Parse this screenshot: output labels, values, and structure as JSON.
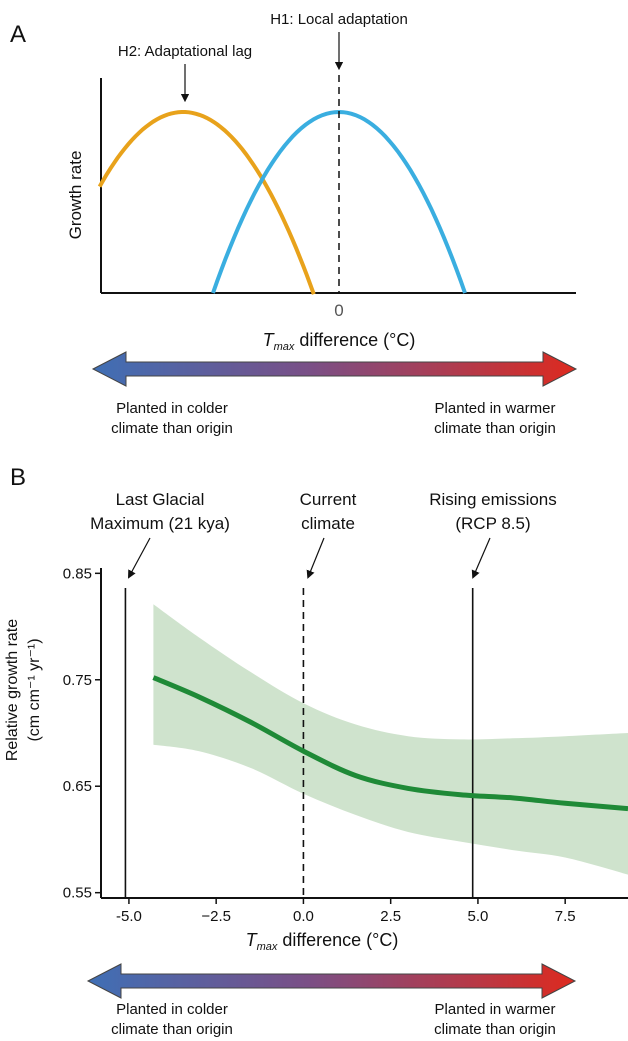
{
  "panelA": {
    "letter": "A",
    "ylabel": "Growth rate",
    "xlabel_T": "T",
    "xlabel_sub": "max",
    "xlabel_rest": " difference (°C)",
    "zero_label": "0",
    "h1_label": "H1: Local adaptation",
    "h2_label": "H2: Adaptational lag",
    "arrow_left_line1": "Planted in colder",
    "arrow_left_line2": "climate than origin",
    "arrow_right_line1": "Planted in warmer",
    "arrow_right_line2": "climate than origin"
  },
  "panelB": {
    "letter": "B",
    "ylabel_line1": "Relative growth rate",
    "ylabel_line2": "(cm cm⁻¹ yr⁻¹)",
    "xlabel_T": "T",
    "xlabel_sub": "max",
    "xlabel_rest": " difference (°C)",
    "lgm_line1": "Last Glacial",
    "lgm_line2": "Maximum (21 kya)",
    "current_line1": "Current",
    "current_line2": "climate",
    "rcp_line1": "Rising emissions",
    "rcp_line2": "(RCP 8.5)",
    "arrow_left_line1": "Planted in colder",
    "arrow_left_line2": "climate than origin",
    "arrow_right_line1": "Planted in warmer",
    "arrow_right_line2": "climate than origin"
  },
  "colors": {
    "orange": "#e8a21b",
    "blue": "#3aaee0",
    "green": "#1f8a37",
    "ribbon": "#cfe3cd",
    "arrow_left": "#3f6fb5",
    "arrow_right": "#dd2a1f"
  },
  "chart_data": [
    {
      "type": "line",
      "panel": "A",
      "xlabel": "Tmax difference (°C)",
      "ylabel": "Growth rate",
      "x_ticks": [
        "0"
      ],
      "series": [
        {
          "name": "H2: Adaptational lag",
          "peak_x": -3,
          "x_range": [
            -5,
            0.5
          ],
          "shape": "parabola"
        },
        {
          "name": "H1: Local adaptation",
          "peak_x": 0,
          "x_range": [
            -2.5,
            2.5
          ],
          "shape": "parabola"
        }
      ]
    },
    {
      "type": "line",
      "panel": "B",
      "xlabel": "Tmax difference (°C)",
      "ylabel": "Relative growth rate (cm cm-1 yr-1)",
      "xlim": [
        -5.8,
        9.3
      ],
      "ylim": [
        0.545,
        0.855
      ],
      "x_ticks": [
        -5.0,
        -2.5,
        0.0,
        2.5,
        5.0,
        7.5
      ],
      "x_tick_labels": [
        "-5.0",
        "−2.5",
        "0.0",
        "2.5",
        "5.0",
        "7.5"
      ],
      "y_ticks": [
        0.55,
        0.65,
        0.75,
        0.85
      ],
      "y_tick_labels": [
        "0.55",
        "0.65",
        "0.75",
        "0.85"
      ],
      "vlines": [
        {
          "x": -5.1,
          "style": "solid",
          "label": "Last Glacial Maximum (21 kya)"
        },
        {
          "x": 0.0,
          "style": "dashed",
          "label": "Current climate"
        },
        {
          "x": 4.85,
          "style": "solid",
          "label": "Rising emissions (RCP 8.5)"
        }
      ],
      "x": [
        -4.3,
        -3.0,
        -1.5,
        0.0,
        1.5,
        3.0,
        4.5,
        6.0,
        7.5,
        9.3
      ],
      "y": [
        0.752,
        0.734,
        0.71,
        0.683,
        0.66,
        0.648,
        0.642,
        0.639,
        0.634,
        0.629
      ],
      "ci_lower": [
        0.689,
        0.683,
        0.667,
        0.643,
        0.623,
        0.607,
        0.598,
        0.59,
        0.583,
        0.567
      ],
      "ci_upper": [
        0.821,
        0.79,
        0.757,
        0.728,
        0.708,
        0.697,
        0.694,
        0.695,
        0.697,
        0.7
      ]
    }
  ]
}
